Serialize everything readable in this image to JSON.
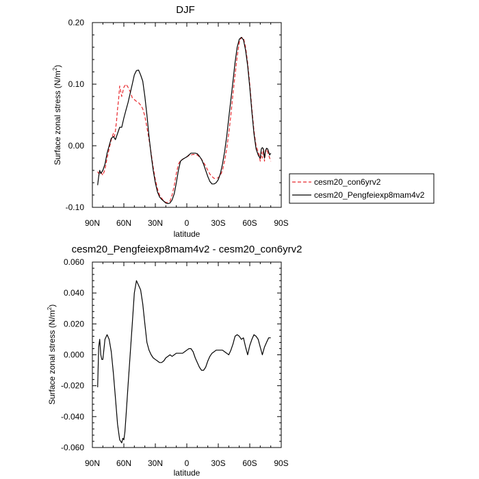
{
  "chart_data": [
    {
      "type": "line",
      "title": "DJF",
      "xlabel": "latitude",
      "ylabel": "Surface zonal stress (N/m",
      "ylabel_sup": "2",
      "ylabel_end": ")",
      "xlim": [
        -90,
        90
      ],
      "ylim": [
        -0.1,
        0.2
      ],
      "xticks": [
        {
          "value": -90,
          "label": "90N"
        },
        {
          "value": -60,
          "label": "60N"
        },
        {
          "value": -30,
          "label": "30N"
        },
        {
          "value": 0,
          "label": "0"
        },
        {
          "value": 30,
          "label": "30S"
        },
        {
          "value": 60,
          "label": "60S"
        },
        {
          "value": 90,
          "label": "90S"
        }
      ],
      "yticks": [
        {
          "value": -0.1,
          "label": "-0.10"
        },
        {
          "value": 0.0,
          "label": "0.00"
        },
        {
          "value": 0.1,
          "label": "0.10"
        },
        {
          "value": 0.2,
          "label": "0.20"
        }
      ],
      "legend_placement": "outside-right",
      "series": [
        {
          "name": "cesm20_con6yrv2",
          "color": "#e8262b",
          "dash": "dashed",
          "x": [
            -85,
            -84,
            -82,
            -80,
            -78,
            -76,
            -74,
            -72,
            -70,
            -69,
            -68,
            -67,
            -66,
            -65,
            -64,
            -62,
            -60,
            -58,
            -56,
            -54,
            -52,
            -50,
            -48,
            -46,
            -44,
            -42,
            -40,
            -38,
            -36,
            -34,
            -32,
            -30,
            -28,
            -26,
            -24,
            -22,
            -20,
            -18,
            -16,
            -14,
            -12,
            -10,
            -8,
            -6,
            -4,
            -2,
            0,
            2,
            4,
            6,
            8,
            10,
            12,
            14,
            16,
            18,
            20,
            22,
            24,
            26,
            28,
            30,
            32,
            34,
            36,
            38,
            40,
            42,
            44,
            46,
            48,
            50,
            52,
            54,
            56,
            58,
            60,
            62,
            64,
            66,
            68,
            69,
            70,
            71,
            72,
            73,
            74,
            75,
            76,
            77,
            78,
            79,
            80
          ],
          "y": [
            -0.042,
            -0.045,
            -0.042,
            -0.048,
            -0.038,
            -0.02,
            -0.005,
            0.01,
            0.02,
            0.015,
            0.025,
            0.04,
            0.06,
            0.075,
            0.097,
            0.08,
            0.095,
            0.1,
            0.095,
            0.088,
            0.078,
            0.075,
            0.072,
            0.07,
            0.066,
            0.06,
            0.048,
            0.03,
            0.01,
            -0.012,
            -0.035,
            -0.055,
            -0.07,
            -0.08,
            -0.085,
            -0.09,
            -0.092,
            -0.092,
            -0.09,
            -0.08,
            -0.065,
            -0.045,
            -0.03,
            -0.024,
            -0.022,
            -0.02,
            -0.018,
            -0.016,
            -0.015,
            -0.014,
            -0.014,
            -0.015,
            -0.018,
            -0.022,
            -0.027,
            -0.033,
            -0.04,
            -0.046,
            -0.05,
            -0.053,
            -0.053,
            -0.052,
            -0.048,
            -0.04,
            -0.025,
            -0.005,
            0.02,
            0.05,
            0.085,
            0.115,
            0.145,
            0.168,
            0.176,
            0.175,
            0.16,
            0.135,
            0.1,
            0.06,
            0.025,
            0.0,
            -0.01,
            -0.015,
            -0.025,
            -0.01,
            -0.02,
            -0.005,
            -0.025,
            -0.01,
            -0.005,
            -0.01,
            -0.015,
            -0.02,
            -0.025
          ]
        },
        {
          "name": "cesm20_Pengfeiexp8mam4v2",
          "color": "#000000",
          "dash": "solid",
          "x": [
            -85,
            -84,
            -83,
            -82,
            -80,
            -78,
            -76,
            -74,
            -72,
            -70,
            -68,
            -66,
            -64,
            -62,
            -60,
            -58,
            -56,
            -54,
            -52,
            -50,
            -48,
            -46,
            -44,
            -42,
            -40,
            -38,
            -36,
            -34,
            -32,
            -30,
            -28,
            -26,
            -24,
            -22,
            -20,
            -18,
            -16,
            -14,
            -12,
            -10,
            -8,
            -6,
            -4,
            -2,
            0,
            2,
            4,
            6,
            8,
            10,
            12,
            14,
            16,
            18,
            20,
            22,
            24,
            26,
            28,
            30,
            32,
            34,
            36,
            38,
            40,
            42,
            44,
            46,
            48,
            50,
            52,
            54,
            56,
            58,
            60,
            62,
            64,
            66,
            68,
            69,
            70,
            71,
            72,
            73,
            74,
            75,
            76,
            77,
            78,
            79,
            80
          ],
          "y": [
            -0.064,
            -0.05,
            -0.04,
            -0.045,
            -0.04,
            -0.03,
            -0.012,
            0.0,
            0.012,
            0.015,
            0.01,
            0.02,
            0.03,
            0.03,
            0.045,
            0.058,
            0.07,
            0.085,
            0.1,
            0.115,
            0.122,
            0.123,
            0.115,
            0.105,
            0.08,
            0.05,
            0.015,
            -0.015,
            -0.04,
            -0.06,
            -0.075,
            -0.083,
            -0.087,
            -0.09,
            -0.093,
            -0.094,
            -0.093,
            -0.088,
            -0.078,
            -0.06,
            -0.04,
            -0.025,
            -0.022,
            -0.02,
            -0.018,
            -0.015,
            -0.012,
            -0.012,
            -0.012,
            -0.013,
            -0.017,
            -0.022,
            -0.03,
            -0.04,
            -0.05,
            -0.058,
            -0.062,
            -0.062,
            -0.06,
            -0.055,
            -0.045,
            -0.03,
            -0.01,
            0.015,
            0.045,
            0.075,
            0.105,
            0.135,
            0.16,
            0.173,
            0.176,
            0.172,
            0.155,
            0.13,
            0.095,
            0.055,
            0.02,
            -0.005,
            -0.015,
            -0.018,
            -0.02,
            -0.005,
            -0.003,
            -0.005,
            -0.02,
            -0.008,
            -0.004,
            -0.005,
            -0.01,
            -0.015,
            -0.012
          ]
        }
      ]
    },
    {
      "type": "line",
      "title": "cesm20_Pengfeiexp8mam4v2 - cesm20_con6yrv2",
      "xlabel": "latitude",
      "ylabel": "Surface zonal stress (N/m",
      "ylabel_sup": "2",
      "ylabel_end": ")",
      "xlim": [
        -90,
        90
      ],
      "ylim": [
        -0.06,
        0.06
      ],
      "xticks": [
        {
          "value": -90,
          "label": "90N"
        },
        {
          "value": -60,
          "label": "60N"
        },
        {
          "value": -30,
          "label": "30N"
        },
        {
          "value": 0,
          "label": "0"
        },
        {
          "value": 30,
          "label": "30S"
        },
        {
          "value": 60,
          "label": "60S"
        },
        {
          "value": 90,
          "label": "90S"
        }
      ],
      "yticks": [
        {
          "value": -0.06,
          "label": "-0.060"
        },
        {
          "value": -0.04,
          "label": "-0.040"
        },
        {
          "value": -0.02,
          "label": "-0.020"
        },
        {
          "value": 0.0,
          "label": "0.000"
        },
        {
          "value": 0.02,
          "label": "0.020"
        },
        {
          "value": 0.04,
          "label": "0.040"
        },
        {
          "value": 0.06,
          "label": "0.060"
        }
      ],
      "series": [
        {
          "color": "#000000",
          "dash": "solid",
          "x": [
            -85,
            -84,
            -83,
            -82,
            -81,
            -80,
            -78,
            -76,
            -74,
            -72,
            -70,
            -68,
            -66,
            -64,
            -62,
            -61,
            -60,
            -59,
            -58,
            -56,
            -54,
            -52,
            -50,
            -48,
            -46,
            -44,
            -42,
            -40,
            -38,
            -36,
            -34,
            -32,
            -30,
            -28,
            -26,
            -24,
            -22,
            -20,
            -18,
            -16,
            -14,
            -12,
            -10,
            -8,
            -6,
            -4,
            -2,
            0,
            2,
            4,
            6,
            8,
            10,
            12,
            14,
            16,
            18,
            20,
            22,
            24,
            26,
            28,
            30,
            32,
            34,
            36,
            38,
            40,
            42,
            44,
            46,
            48,
            50,
            52,
            54,
            56,
            58,
            60,
            62,
            64,
            66,
            68,
            70,
            72,
            74,
            76,
            78,
            80
          ],
          "y": [
            -0.021,
            0.005,
            0.01,
            0.0,
            -0.003,
            -0.003,
            0.01,
            0.013,
            0.01,
            0.002,
            -0.012,
            -0.028,
            -0.045,
            -0.055,
            -0.057,
            -0.054,
            -0.055,
            -0.05,
            -0.04,
            -0.02,
            0.0,
            0.02,
            0.04,
            0.048,
            0.045,
            0.042,
            0.033,
            0.02,
            0.008,
            0.003,
            0.0,
            -0.002,
            -0.003,
            -0.004,
            -0.005,
            -0.005,
            -0.004,
            -0.002,
            -0.001,
            0.0,
            -0.001,
            0.0,
            0.001,
            0.001,
            0.001,
            0.001,
            0.002,
            0.003,
            0.004,
            0.004,
            0.002,
            -0.002,
            -0.005,
            -0.008,
            -0.01,
            -0.01,
            -0.008,
            -0.004,
            -0.001,
            0.001,
            0.002,
            0.003,
            0.003,
            0.003,
            0.003,
            0.002,
            0.001,
            0.0,
            0.003,
            0.007,
            0.012,
            0.013,
            0.012,
            0.01,
            0.011,
            0.005,
            0.0,
            0.006,
            0.01,
            0.013,
            0.012,
            0.01,
            0.005,
            0.0,
            0.005,
            0.008,
            0.011,
            0.011
          ]
        }
      ]
    }
  ]
}
